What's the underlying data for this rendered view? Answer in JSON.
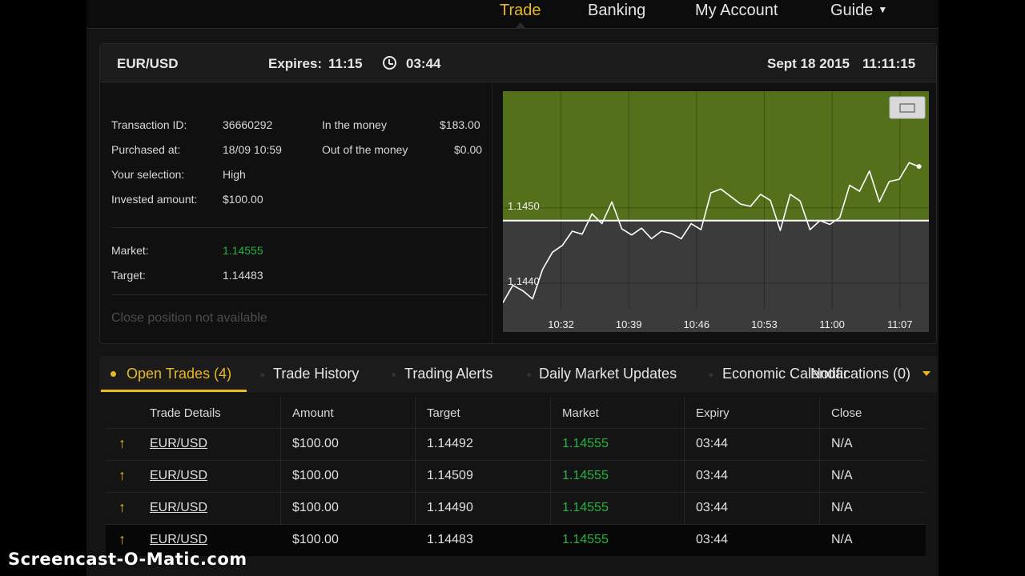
{
  "nav": {
    "items": [
      {
        "label": "Trade",
        "active": true
      },
      {
        "label": "Banking"
      },
      {
        "label": "My Account"
      },
      {
        "label": "Guide",
        "has_dropdown": true
      }
    ]
  },
  "header": {
    "pair": "EUR/USD",
    "expires_label": "Expires:",
    "expires_time": "11:15",
    "countdown_icon": "clock-icon",
    "countdown": "03:44",
    "date": "Sept 18 2015",
    "time": "11:11:15"
  },
  "details": {
    "transaction_id_label": "Transaction ID:",
    "transaction_id": "36660292",
    "purchased_at_label": "Purchased at:",
    "purchased_at": "18/09 10:59",
    "selection_label": "Your selection:",
    "selection": "High",
    "invested_label": "Invested amount:",
    "invested": "$100.00",
    "in_money_label": "In the money",
    "in_money": "$183.00",
    "out_money_label": "Out of the money",
    "out_money": "$0.00",
    "market_label": "Market:",
    "market": "1.14555",
    "target_label": "Target:",
    "target": "1.14483",
    "close_position": "Close position not available"
  },
  "chart_data": {
    "type": "line",
    "y_tick_labels": [
      "1.1450",
      "1.1440"
    ],
    "x_tick_labels": [
      "10:32",
      "10:39",
      "10:46",
      "10:53",
      "11:00",
      "11:07"
    ],
    "ylim": [
      1.14335,
      1.14655
    ],
    "target_level": 1.14483,
    "x_minutes": [
      0,
      1,
      2,
      3,
      4,
      5,
      6,
      7,
      8,
      9,
      10,
      11,
      12,
      13,
      14,
      15,
      16,
      17,
      18,
      19,
      20,
      21,
      22,
      23,
      24,
      25,
      26,
      27,
      28,
      29,
      30,
      31,
      32,
      33,
      34,
      35,
      36,
      37,
      38,
      39,
      40,
      41,
      42
    ],
    "values": [
      1.14374,
      1.14397,
      1.1439,
      1.14379,
      1.14418,
      1.14441,
      1.1445,
      1.14469,
      1.14465,
      1.14492,
      1.14479,
      1.14508,
      1.14472,
      1.14464,
      1.14473,
      1.14459,
      1.14469,
      1.14466,
      1.14459,
      1.14479,
      1.14471,
      1.1452,
      1.14525,
      1.14515,
      1.14505,
      1.14502,
      1.14518,
      1.1451,
      1.1447,
      1.14518,
      1.14509,
      1.14471,
      1.14483,
      1.14478,
      1.14487,
      1.1453,
      1.14522,
      1.14549,
      1.14508,
      1.14535,
      1.14538,
      1.1456,
      1.14555
    ],
    "current_time_marker": "11:11",
    "positive_zone_color": "#55701a",
    "negative_zone_color": "#3b3b3b",
    "line_color": "#ffffff",
    "marker_color": "#e06a2a"
  },
  "tabs": [
    {
      "label": "Open Trades (4)",
      "active": true
    },
    {
      "label": "Trade History"
    },
    {
      "label": "Trading Alerts"
    },
    {
      "label": "Daily Market Updates"
    },
    {
      "label": "Economic Calendar"
    },
    {
      "label": "Notifications (0)"
    }
  ],
  "table": {
    "headers": [
      "Trade Details",
      "Amount",
      "Target",
      "Market",
      "Expiry",
      "Close"
    ],
    "rows": [
      {
        "direction_icon": "arrow-up-icon",
        "pair": "EUR/USD",
        "amount": "$100.00",
        "target": "1.14492",
        "market": "1.14555",
        "expiry": "03:44",
        "close": "N/A"
      },
      {
        "direction_icon": "arrow-up-icon",
        "pair": "EUR/USD",
        "amount": "$100.00",
        "target": "1.14509",
        "market": "1.14555",
        "expiry": "03:44",
        "close": "N/A"
      },
      {
        "direction_icon": "arrow-up-icon",
        "pair": "EUR/USD",
        "amount": "$100.00",
        "target": "1.14490",
        "market": "1.14555",
        "expiry": "03:44",
        "close": "N/A"
      },
      {
        "direction_icon": "arrow-up-icon",
        "pair": "EUR/USD",
        "amount": "$100.00",
        "target": "1.14483",
        "market": "1.14555",
        "expiry": "03:44",
        "close": "N/A"
      }
    ]
  },
  "watermark": "Screencast-O-Matic.com",
  "colors": {
    "accent": "#e8b923",
    "up": "#26b342"
  }
}
